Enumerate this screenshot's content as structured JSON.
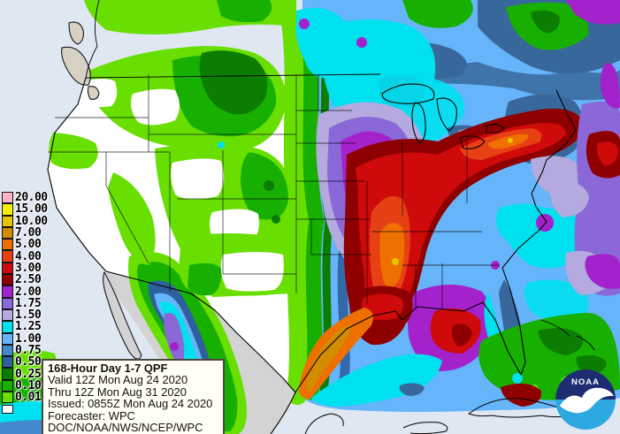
{
  "map": {
    "ocean_color": "#DEE7F2",
    "no_data_land_color": "#D3D3D3",
    "land_color": "#FFFFFF"
  },
  "legend": {
    "entries": [
      {
        "threshold": "20.00",
        "color": "#FFB4C6"
      },
      {
        "threshold": "15.00",
        "color": "#F4EE00"
      },
      {
        "threshold": "10.00",
        "color": "#E7C400"
      },
      {
        "threshold": "7.00",
        "color": "#D18C00"
      },
      {
        "threshold": "5.00",
        "color": "#EE7000"
      },
      {
        "threshold": "4.00",
        "color": "#E64014"
      },
      {
        "threshold": "3.00",
        "color": "#CF0A0A"
      },
      {
        "threshold": "2.50",
        "color": "#8E0000"
      },
      {
        "threshold": "2.00",
        "color": "#A322CC"
      },
      {
        "threshold": "1.75",
        "color": "#8A68D8"
      },
      {
        "threshold": "1.50",
        "color": "#B4AADF"
      },
      {
        "threshold": "1.25",
        "color": "#00E1F0"
      },
      {
        "threshold": "1.00",
        "color": "#66B5FA"
      },
      {
        "threshold": "0.75",
        "color": "#4489CE"
      },
      {
        "threshold": "0.50",
        "color": "#2E609E"
      },
      {
        "threshold": "0.25",
        "color": "#0B7D00"
      },
      {
        "threshold": "0.10",
        "color": "#17B000"
      },
      {
        "threshold": "0.01",
        "color": "#68DF00"
      },
      {
        "threshold": "",
        "color": "#FFFFFF"
      }
    ]
  },
  "info_box": {
    "title": "168-Hour Day 1-7 QPF",
    "valid": "Valid 12Z Mon Aug 24 2020",
    "thru": "Thru 12Z Mon Aug 31 2020",
    "issued": "Issued: 0855Z Mon Aug 24 2020",
    "forecaster": "Forecaster: WPC",
    "agency": "DOC/NOAA/NWS/NCEP/WPC"
  },
  "noaa_logo": {
    "text": "NOAA"
  }
}
